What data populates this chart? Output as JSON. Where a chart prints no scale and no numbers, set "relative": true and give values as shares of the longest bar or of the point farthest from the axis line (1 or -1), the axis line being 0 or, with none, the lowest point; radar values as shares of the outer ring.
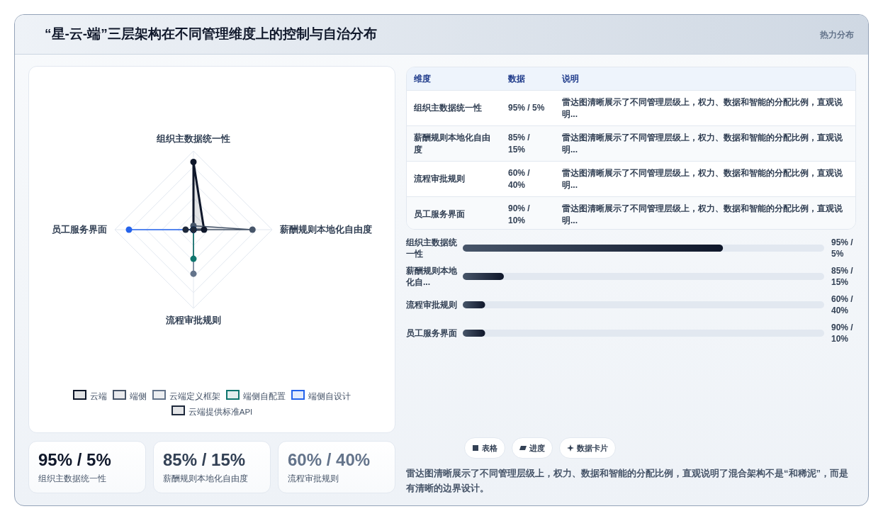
{
  "chart_data": [
    {
      "type": "other",
      "title": "“星-云-端”三层架构在不同管理维度上的控制与自治分布",
      "annotations": [
        "热力分布"
      ]
    },
    {
      "type": "radar",
      "relative": true,
      "legend": "bottom",
      "marker": "circle",
      "categories": [
        "组织主数据统一性",
        "薪酬规则本地化自由度",
        "流程审批规则",
        "员工服务界面"
      ],
      "series": [
        {
          "name": "云端",
          "color": "#0f172a",
          "values": [
            0.86,
            0.135,
            0,
            0
          ]
        },
        {
          "name": "端侧",
          "color": "#475569",
          "values": [
            0.05,
            0.75,
            0,
            0
          ]
        },
        {
          "name": "云端定义框架",
          "color": "#64748b",
          "values": [
            0,
            0,
            0.56,
            0
          ]
        },
        {
          "name": "端侧自配置",
          "color": "#0f766e",
          "values": [
            0,
            0,
            0.37,
            0
          ]
        },
        {
          "name": "端侧自设计",
          "color": "#2563eb",
          "values": [
            0,
            0,
            0,
            0.82
          ]
        },
        {
          "name": "云端提供标准API",
          "color": "#1e293b",
          "values": [
            0,
            0,
            0,
            0.1
          ]
        }
      ]
    },
    {
      "type": "other",
      "annotations": [
        "维度",
        "数据",
        "说明",
        "组织主数据统一性",
        "95% / 5%",
        "雷达图清晰展示了不同管理层级上，权力、数据和智能的分配比例，直观说明...",
        "薪酬规则本地化自由度",
        "85% / 15%",
        "雷达图清晰展示了不同管理层级上，权力、数据和智能的分配比例，直观说明...",
        "流程审批规则",
        "60% / 40%",
        "雷达图清晰展示了不同管理层级上，权力、数据和智能的分配比例，直观说明...",
        "员工服务界面",
        "90% / 10%",
        "雷达图清晰展示了不同管理层级上，权力、数据和智能的分配比例，直观说明..."
      ]
    },
    {
      "type": "bar",
      "orientation": "horizontal",
      "relative": true,
      "categories": [
        "组织主数据统一性",
        "薪酬规则本地化自...",
        "流程审批规则",
        "员工服务界面"
      ],
      "values": [
        1,
        0.158,
        0.086,
        0.086
      ],
      "color": "#0f172a",
      "annotations": [
        "95% / 5%",
        "85% / 15%",
        "60% / 40%",
        "90% / 10%"
      ]
    },
    {
      "type": "other",
      "annotations": [
        "95% / 5%",
        "组织主数据统一性",
        "85% / 15%",
        "薪酬规则本地化自由度",
        "60% / 40%",
        "流程审批规则"
      ]
    },
    {
      "type": "other",
      "annotations": [
        "表格",
        "进度",
        "数据卡片",
        "雷达图清晰展示了不同管理层级上，权力、数据和智能的分配比例，直观说明了混合架构不是“和稀泥”，而是有清晰的边界设计。"
      ]
    }
  ]
}
